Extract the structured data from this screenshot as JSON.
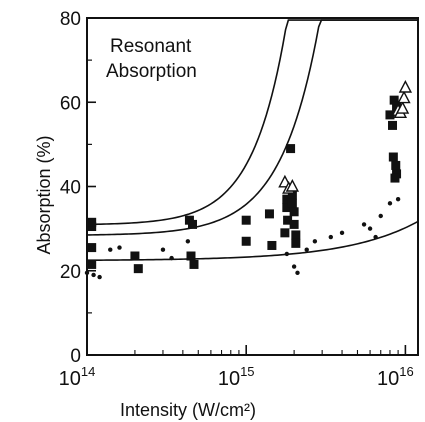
{
  "chart_data": {
    "type": "scatter",
    "title": "Resonant Absorption",
    "title_lines": [
      "Resonant",
      "Absorption"
    ],
    "xlabel": "Intensity (W/cm²)",
    "ylabel": "Absorption (%)",
    "x_scale": "log",
    "xlim": [
      100000000000000.0,
      1.2e+16
    ],
    "ylim": [
      0,
      80
    ],
    "x_tick_labels": [
      {
        "value": 100000000000000.0,
        "base": "10",
        "exp": "14"
      },
      {
        "value": 1000000000000000.0,
        "base": "10",
        "exp": "15"
      },
      {
        "value": 1e+16,
        "base": "10",
        "exp": "16"
      }
    ],
    "y_ticks": [
      0,
      20,
      40,
      60,
      80
    ],
    "y_tick_labels": [
      "0",
      "20",
      "40",
      "60",
      "80"
    ],
    "series": [
      {
        "marker": "square",
        "points": [
          [
            107000000000000.0,
            30.5
          ],
          [
            107000000000000.0,
            31.5
          ],
          [
            107000000000000.0,
            25.5
          ],
          [
            107000000000000.0,
            21.5
          ],
          [
            200000000000000.0,
            23.5
          ],
          [
            210000000000000.0,
            20.5
          ],
          [
            440000000000000.0,
            32
          ],
          [
            460000000000000.0,
            31
          ],
          [
            450000000000000.0,
            23.5
          ],
          [
            470000000000000.0,
            21.5
          ],
          [
            1000000000000000.0,
            32
          ],
          [
            1000000000000000.0,
            27
          ],
          [
            1400000000000000.0,
            33.5
          ],
          [
            1450000000000000.0,
            26
          ],
          [
            1750000000000000.0,
            29
          ],
          [
            1800000000000000.0,
            37
          ],
          [
            1800000000000000.0,
            35
          ],
          [
            1820000000000000.0,
            32
          ],
          [
            1900000000000000.0,
            49
          ],
          [
            1950000000000000.0,
            38
          ],
          [
            1950000000000000.0,
            36
          ],
          [
            2000000000000000.0,
            34
          ],
          [
            2000000000000000.0,
            31
          ],
          [
            2050000000000000.0,
            28.5
          ],
          [
            2050000000000000.0,
            26.5
          ],
          [
            8000000000000000.0,
            57
          ],
          [
            8300000000000000.0,
            54.5
          ],
          [
            8500000000000000.0,
            60.5
          ],
          [
            8800000000000000.0,
            59
          ],
          [
            8400000000000000.0,
            47
          ],
          [
            8700000000000000.0,
            45
          ],
          [
            8800000000000000.0,
            43
          ],
          [
            8600000000000000.0,
            42
          ]
        ]
      },
      {
        "marker": "dot",
        "points": [
          [
            100000000000000.0,
            19.5
          ],
          [
            110000000000000.0,
            19
          ],
          [
            120000000000000.0,
            18.5
          ],
          [
            140000000000000.0,
            25
          ],
          [
            160000000000000.0,
            25.5
          ],
          [
            300000000000000.0,
            25
          ],
          [
            430000000000000.0,
            27
          ],
          [
            340000000000000.0,
            23
          ],
          [
            1800000000000000.0,
            24
          ],
          [
            2000000000000000.0,
            21
          ],
          [
            2100000000000000.0,
            19.5
          ],
          [
            2400000000000000.0,
            25
          ],
          [
            2700000000000000.0,
            27
          ],
          [
            3400000000000000.0,
            28
          ],
          [
            4000000000000000.0,
            29
          ],
          [
            5500000000000000.0,
            31
          ],
          [
            6000000000000000.0,
            30
          ],
          [
            6500000000000000.0,
            28
          ],
          [
            7000000000000000.0,
            33
          ],
          [
            8000000000000000.0,
            36
          ],
          [
            9000000000000000.0,
            37
          ]
        ]
      },
      {
        "marker": "triangle",
        "points": [
          [
            1750000000000000.0,
            41
          ],
          [
            1850000000000000.0,
            39.5
          ],
          [
            1950000000000000.0,
            40
          ],
          [
            9000000000000000.0,
            58
          ],
          [
            9300000000000000.0,
            57.5
          ],
          [
            9600000000000000.0,
            58.5
          ],
          [
            9800000000000000.0,
            61
          ],
          [
            1e+16,
            63.5
          ]
        ]
      }
    ],
    "fit_curves": [
      {
        "a": 31.0,
        "b": 3.3
      },
      {
        "a": 28.5,
        "b": 2.9
      },
      {
        "a": 22.5,
        "b": 1.55
      }
    ]
  }
}
